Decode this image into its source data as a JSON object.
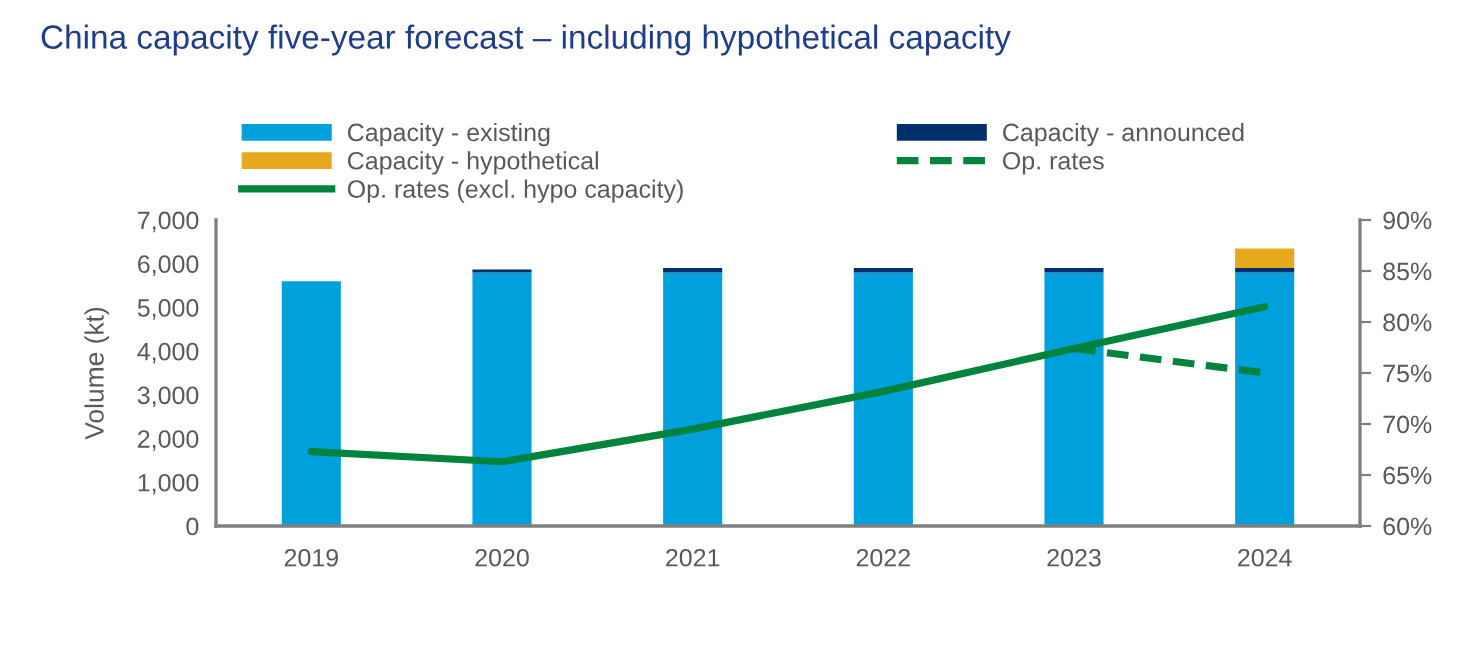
{
  "chart_data": {
    "type": "bar",
    "title": "China capacity five-year forecast – including hypothetical capacity",
    "ylabel": "Volume (kt)",
    "categories": [
      "2019",
      "2020",
      "2021",
      "2022",
      "2023",
      "2024"
    ],
    "stacked": true,
    "series": [
      {
        "name": "Capacity - existing",
        "color": "#00a0dc",
        "values": [
          5600,
          5800,
          5800,
          5800,
          5800,
          5800
        ]
      },
      {
        "name": "Capacity - announced",
        "color": "#002f6c",
        "values": [
          null,
          70,
          100,
          100,
          100,
          100
        ]
      },
      {
        "name": "Capacity - hypothetical",
        "color": "#e8a81c",
        "values": [
          null,
          null,
          null,
          null,
          null,
          450
        ]
      },
      {
        "name": "Op. rates",
        "type": "line",
        "axis": "y2",
        "color": "#00843d",
        "line_style": "dashed",
        "values": [
          null,
          null,
          null,
          null,
          77.4,
          75
        ]
      },
      {
        "name": "Op. rates (excl. hypo capacity)",
        "type": "line",
        "axis": "y2",
        "color": "#00843d",
        "line_style": "solid",
        "values": [
          67.3,
          66.3,
          69.5,
          73.2,
          77.4,
          81.5
        ]
      }
    ],
    "ylim": [
      0,
      7000
    ],
    "yticks": [
      0,
      {
        "value": 1000,
        "label": "1,000"
      },
      {
        "value": 2000,
        "label": "2,000"
      },
      {
        "value": 3000,
        "label": "3,000"
      },
      {
        "value": 4000,
        "label": "4,000"
      },
      {
        "value": 5000,
        "label": "5,000"
      },
      {
        "value": 6000,
        "label": "6,000"
      },
      {
        "value": 7000,
        "label": "7,000"
      }
    ],
    "y2lim": [
      60,
      90
    ],
    "y2ticks": [
      {
        "value": 60,
        "label": "60%"
      },
      {
        "value": 65,
        "label": "65%"
      },
      {
        "value": 70,
        "label": "70%"
      },
      {
        "value": 75,
        "label": "75%"
      },
      {
        "value": 80,
        "label": "80%"
      },
      {
        "value": 85,
        "label": "85%"
      },
      {
        "value": 90,
        "label": "90%"
      }
    ],
    "legend": "top",
    "marker": "none",
    "grid": false
  }
}
